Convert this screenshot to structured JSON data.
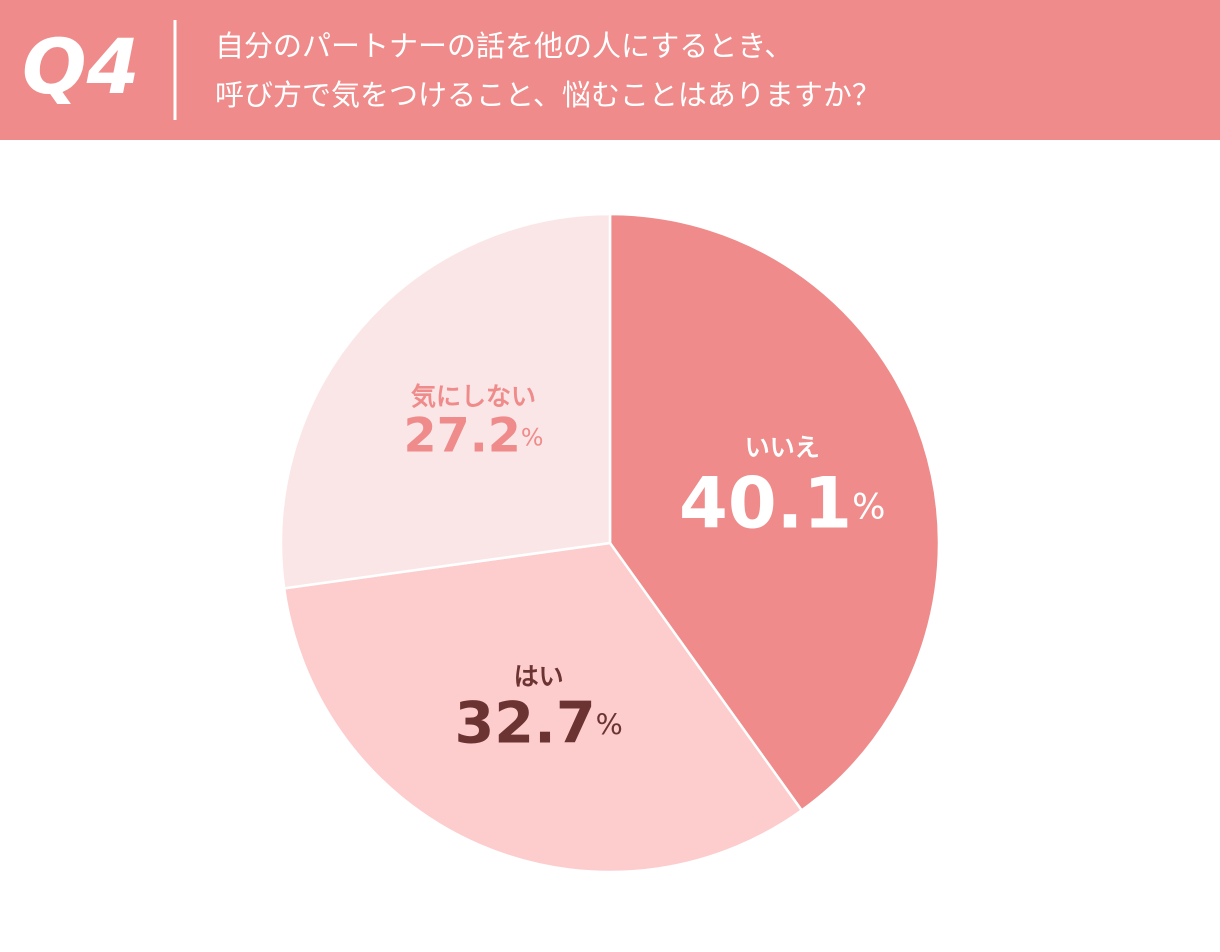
{
  "chart_data": {
    "type": "pie",
    "question_number": "Q4",
    "title": [
      "自分のパートナーの話を他の人にするとき、",
      "呼び方で気をつけること、悩むことはありますか？"
    ],
    "categories": [
      "いいえ",
      "はい",
      "気にしない"
    ],
    "values": [
      40.1,
      32.7,
      27.2
    ],
    "value_labels": [
      "40.1%",
      "32.7%",
      "27.2%"
    ],
    "colors": [
      "#ef8b8a",
      "#fdcccd",
      "#fbe6e7"
    ],
    "label_colors": [
      "#ffffff",
      "#6b3331",
      "#ef8b8a"
    ]
  }
}
